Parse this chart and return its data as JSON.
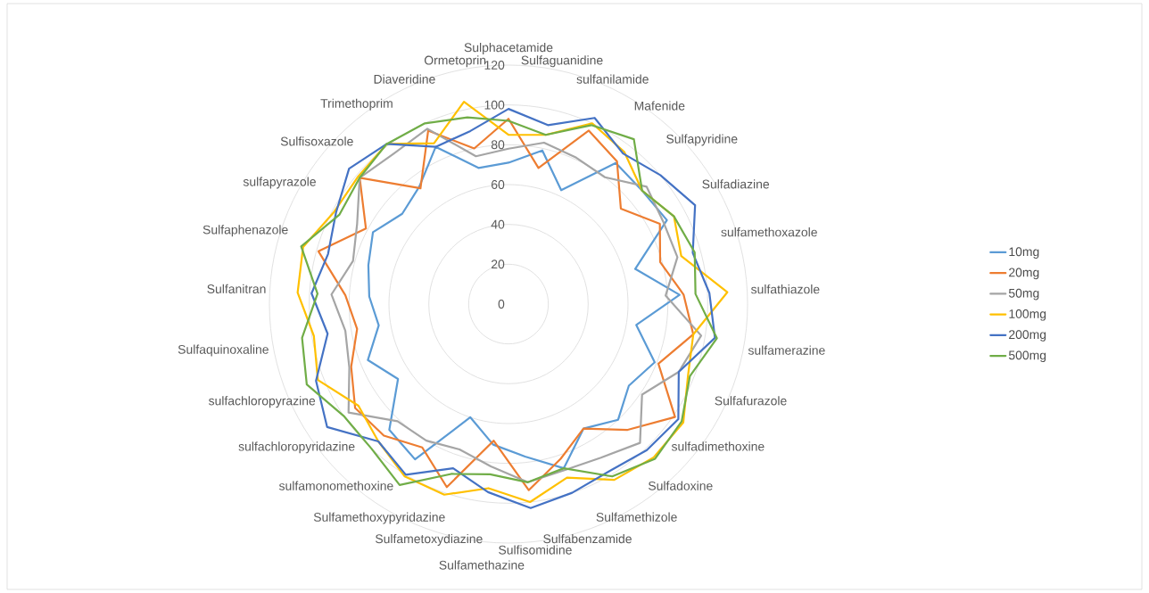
{
  "chart_data": {
    "type": "radar",
    "categories": [
      "Sulphacetamide",
      "Sulfaguanidine",
      "sulfanilamide",
      "Mafenide",
      "Sulfapyridine",
      "Sulfadiazine",
      "sulfamethoxazole",
      "sulfathiazole",
      "sulfamerazine",
      "Sulfafurazole",
      "sulfadimethoxine",
      "Sulfadoxine",
      "Sulfamethizole",
      "Sulfabenzamide",
      "Sulfisomidine",
      "Sulfamethazine",
      "Sulfametoxydiazine",
      "Sulfamethoxypyridazine",
      "sulfamonomethoxine",
      "sulfachloropyridazine",
      "sulfachloropyrazine",
      "Sulfaquinoxaline",
      "Sulfanitran",
      "Sulfaphenazole",
      "sulfapyrazole",
      "Sulfisoxazole",
      "Trimethoprim",
      "Diaveridine",
      "Ormetoprin"
    ],
    "series": [
      {
        "name": "10mg",
        "color": "#5b9bd5",
        "values": [
          71,
          79,
          63,
          89,
          88,
          90,
          66,
          86,
          65,
          79,
          73,
          80,
          73,
          87,
          77,
          71,
          60,
          91,
          87,
          67,
          76,
          66,
          70,
          73,
          77,
          70,
          74,
          87,
          70
        ]
      },
      {
        "name": "20mg",
        "color": "#ed7d31",
        "values": [
          93,
          70,
          96,
          90,
          74,
          86,
          79,
          88,
          94,
          81,
          101,
          87,
          73,
          82,
          94,
          69,
          97,
          84,
          91,
          93,
          85,
          77,
          82,
          99,
          81,
          98,
          73,
          96,
          80
        ]
      },
      {
        "name": "50mg",
        "color": "#a5a5a5",
        "values": [
          78,
          83,
          81,
          80,
          91,
          88,
          88,
          79,
          98,
          92,
          81,
          96,
          90,
          88,
          90,
          82,
          77,
          80,
          81,
          97,
          86,
          83,
          89,
          81,
          86,
          98,
          95,
          97,
          76
        ]
      },
      {
        "name": "100mg",
        "color": "#ffc000",
        "values": [
          85,
          87,
          100,
          96,
          88,
          94,
          90,
          110,
          94,
          97,
          106,
          106,
          103,
          92,
          100,
          93,
          101,
          101,
          95,
          91,
          103,
          99,
          106,
          107,
          99,
          99,
          101,
          89,
          104
        ]
      },
      {
        "name": "200mg",
        "color": "#4472c4",
        "values": [
          98,
          92,
          103,
          95,
          100,
          106,
          96,
          101,
          105,
          92,
          103,
          101,
          98,
          100,
          103,
          95,
          87,
          100,
          95,
          110,
          104,
          92,
          99,
          94,
          98,
          105,
          101,
          87,
          89
        ]
      },
      {
        "name": "500mg",
        "color": "#70ad47",
        "values": [
          92,
          87,
          99,
          104,
          88,
          94,
          97,
          94,
          106,
          98,
          105,
          107,
          101,
          87,
          90,
          86,
          90,
          106,
          100,
          100,
          109,
          105,
          96,
          108,
          96,
          98,
          101,
          100,
          96
        ]
      }
    ],
    "ylim": [
      0,
      120
    ],
    "yticks": [
      0,
      20,
      40,
      60,
      80,
      100,
      120
    ],
    "grid": "y",
    "legend": "right"
  }
}
